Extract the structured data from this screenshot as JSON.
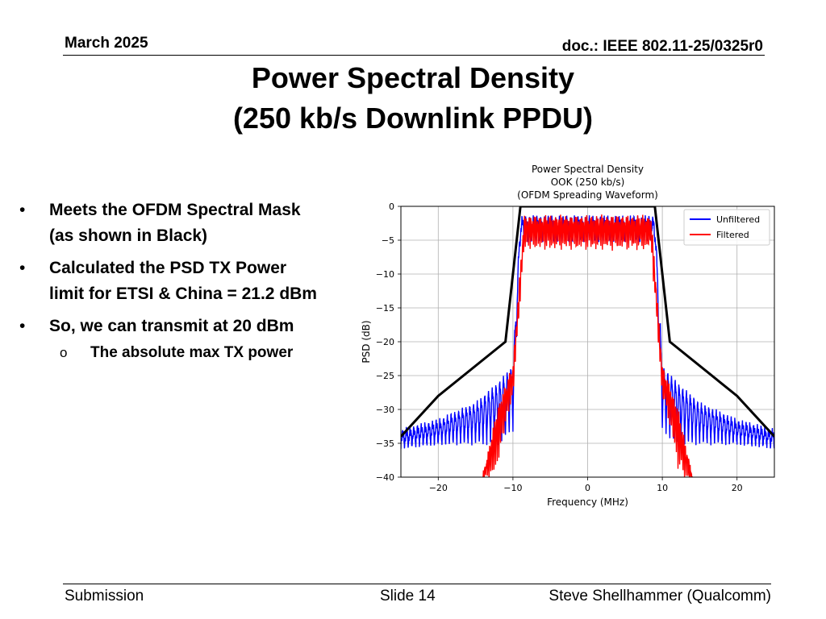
{
  "header": {
    "date": "March 2025",
    "doc": "doc.: IEEE 802.11-25/0325r0"
  },
  "slide": {
    "title_line1": "Power Spectral Density",
    "title_line2": "(250 kb/s Downlink PPDU)"
  },
  "bullets": [
    {
      "marker": "•",
      "text1": "Meets the OFDM Spectral Mask",
      "text2": "(as shown in Black)"
    },
    {
      "marker": "•",
      "text1": "Calculated the PSD TX Power",
      "text2": "limit for ETSI & China = 21.2 dBm"
    },
    {
      "marker": "•",
      "text1": "So, we can transmit at 20 dBm",
      "text2": ""
    }
  ],
  "sub_bullet": {
    "marker": "o",
    "text": "The absolute max TX power"
  },
  "footer": {
    "left": "Submission",
    "center": "Slide 14",
    "right": "Steve Shellhammer (Qualcomm)"
  },
  "chart_data": {
    "type": "line",
    "title_lines": [
      "Power Spectral Density",
      "OOK (250 kb/s)",
      "(OFDM Spreading Waveform)"
    ],
    "xlabel": "Frequency (MHz)",
    "ylabel": "PSD (dB)",
    "xlim": [
      -25,
      25
    ],
    "ylim": [
      -40,
      0
    ],
    "xticks": [
      -20,
      -10,
      0,
      10,
      20
    ],
    "xtick_labels": [
      "−20",
      "−10",
      "0",
      "10",
      "20"
    ],
    "yticks": [
      0,
      -5,
      -10,
      -15,
      -20,
      -25,
      -30,
      -35,
      -40
    ],
    "ytick_labels": [
      "0",
      "−5",
      "−10",
      "−15",
      "−20",
      "−25",
      "−30",
      "−35",
      "−40"
    ],
    "grid": true,
    "legend_position": "top-right",
    "mask": {
      "name": "Spectral Mask",
      "color": "#000000",
      "x": [
        -25,
        -20,
        -11,
        -9,
        9,
        11,
        20,
        25
      ],
      "y": [
        -34,
        -28,
        -20,
        0,
        0,
        -20,
        -28,
        -34
      ]
    },
    "series": [
      {
        "name": "Unfiltered",
        "color": "#0000ff",
        "envelope_x": [
          -25,
          -20,
          -15,
          -12,
          -10,
          -9,
          9,
          10,
          12,
          15,
          20,
          25
        ],
        "envelope_upper": [
          -33.5,
          -32,
          -29.5,
          -26.5,
          -24,
          -2,
          -2,
          -24,
          -26.5,
          -29.5,
          -32,
          -33.5
        ],
        "envelope_lower": [
          -35.5,
          -35,
          -35,
          -35,
          -33,
          -5,
          -5,
          -33,
          -35,
          -35,
          -35,
          -35.5
        ]
      },
      {
        "name": "Filtered",
        "color": "#ff0000",
        "envelope_x": [
          -14,
          -13,
          -12,
          -11,
          -10,
          -8.5,
          8.5,
          10,
          11,
          12,
          13,
          14
        ],
        "envelope_upper": [
          -40,
          -35,
          -30,
          -27,
          -24,
          -2,
          -2,
          -24,
          -27,
          -30,
          -35,
          -40
        ],
        "envelope_lower": [
          -40,
          -40,
          -38,
          -32,
          -28,
          -6,
          -6,
          -28,
          -32,
          -38,
          -40,
          -40
        ]
      }
    ]
  }
}
